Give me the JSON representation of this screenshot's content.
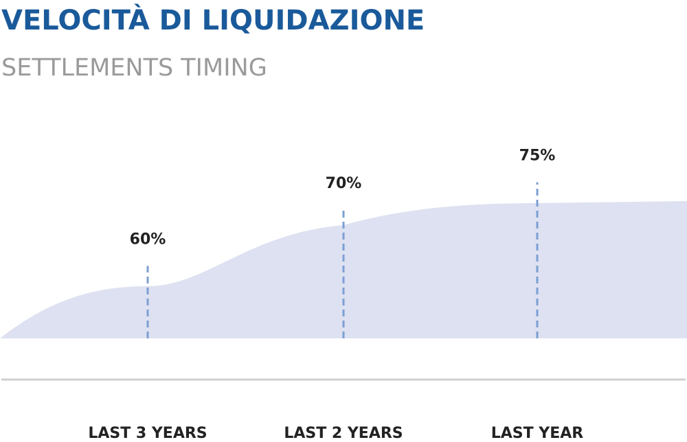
{
  "chart_data": {
    "type": "dashed-bar",
    "title": "VELOCITÀ DI LIQUIDAZIONE",
    "subtitle": "SETTLEMENTS TIMING",
    "categories": [
      "LAST 3 YEARS",
      "LAST 2 YEARS",
      "LAST YEAR"
    ],
    "values": [
      60,
      70,
      75
    ],
    "value_labels": [
      "60%",
      "70%",
      "75%"
    ],
    "color": "#7c9fd2",
    "ylim": [
      47,
      80
    ]
  }
}
